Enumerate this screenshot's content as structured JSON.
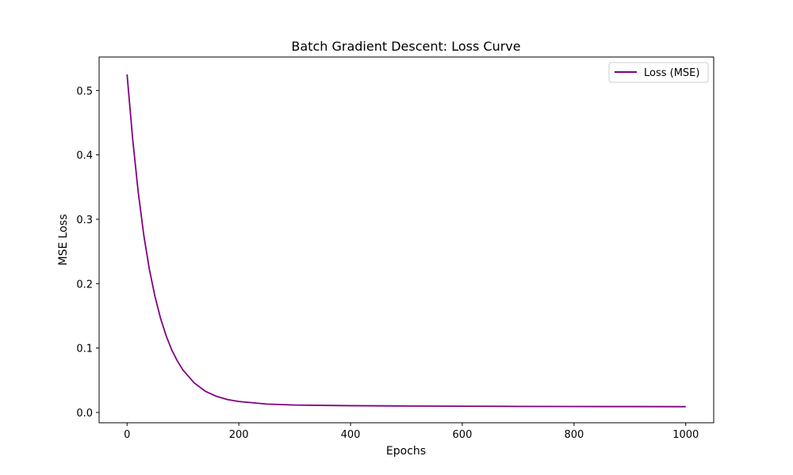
{
  "chart_data": {
    "type": "line",
    "title": "Batch Gradient Descent: Loss Curve",
    "xlabel": "Epochs",
    "ylabel": "MSE Loss",
    "xlim": [
      -50,
      1050
    ],
    "ylim": [
      -0.016,
      0.552
    ],
    "xticks": [
      0,
      200,
      400,
      600,
      800,
      1000
    ],
    "xtick_labels": [
      "0",
      "200",
      "400",
      "600",
      "800",
      "1000"
    ],
    "yticks": [
      0.0,
      0.1,
      0.2,
      0.3,
      0.4,
      0.5
    ],
    "ytick_labels": [
      "0.0",
      "0.1",
      "0.2",
      "0.3",
      "0.4",
      "0.5"
    ],
    "grid": false,
    "legend_position": "top-right",
    "series": [
      {
        "name": "Loss (MSE)",
        "color": "#800080",
        "x": [
          0,
          10,
          20,
          30,
          40,
          50,
          60,
          70,
          80,
          90,
          100,
          120,
          140,
          160,
          180,
          200,
          250,
          300,
          350,
          400,
          500,
          600,
          700,
          800,
          900,
          1000
        ],
        "y": [
          0.525,
          0.425,
          0.342,
          0.275,
          0.222,
          0.18,
          0.146,
          0.119,
          0.097,
          0.08,
          0.066,
          0.046,
          0.033,
          0.025,
          0.02,
          0.017,
          0.013,
          0.0115,
          0.011,
          0.0105,
          0.01,
          0.0097,
          0.0094,
          0.0092,
          0.0091,
          0.009
        ]
      }
    ]
  }
}
